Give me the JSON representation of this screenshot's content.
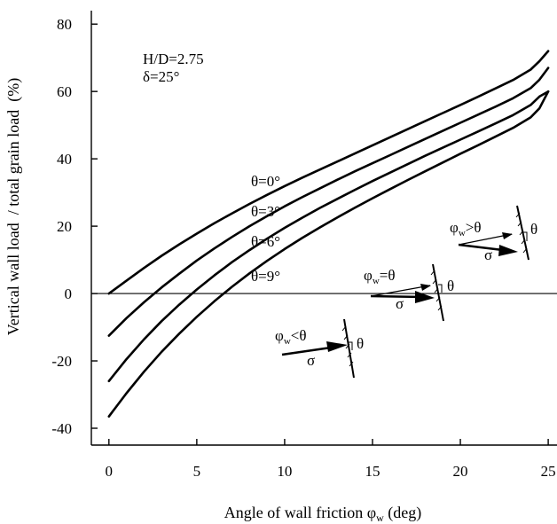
{
  "chart_data": {
    "type": "line",
    "title": "",
    "xlabel": "Angle of wall friction φw (deg)",
    "xlabel_main": "Angle of wall friction φ",
    "xlabel_sub": "w",
    "xlabel_unit": " (deg)",
    "ylabel": "Vertical wall load  / total grain load  (%)",
    "xlim": [
      -1,
      25.5
    ],
    "ylim": [
      -45,
      84
    ],
    "xticks": [
      0,
      5,
      10,
      15,
      20,
      25
    ],
    "yticks": [
      -40,
      -20,
      0,
      20,
      40,
      60,
      80
    ],
    "xtick_labels": [
      "0",
      "5",
      "10",
      "15",
      "20",
      "25"
    ],
    "ytick_labels": [
      "-40",
      "-20",
      "0",
      "20",
      "40",
      "60",
      "80"
    ],
    "grid": false,
    "annotations": {
      "params_line1": "H/D=2.75",
      "params_line2": "δ=25°",
      "inset_gt": {
        "phi": "φ",
        "sub": "w",
        "rel": ">θ",
        "sigma": "σ",
        "theta": "θ"
      },
      "inset_eq": {
        "phi": "φ",
        "sub": "w",
        "rel": "=θ",
        "sigma": "σ",
        "theta": "θ"
      },
      "inset_lt": {
        "phi": "φ",
        "sub": "w",
        "rel": "<θ",
        "sigma": "σ",
        "theta": "θ"
      }
    },
    "series": [
      {
        "name": "θ=0°",
        "x": [
          0,
          1,
          2,
          3,
          4,
          5,
          6,
          7,
          8,
          9,
          10,
          11,
          12,
          13,
          14,
          15,
          16,
          17,
          18,
          19,
          20,
          21,
          22,
          23,
          24,
          24.5,
          25
        ],
        "y": [
          0,
          3.8,
          7.6,
          11.2,
          14.6,
          17.8,
          20.9,
          23.8,
          26.6,
          29.3,
          31.9,
          34.4,
          36.8,
          39.2,
          41.6,
          44,
          46.4,
          48.8,
          51.2,
          53.6,
          56,
          58.4,
          60.9,
          63.4,
          66.5,
          69,
          72
        ]
      },
      {
        "name": "θ=3°",
        "x": [
          0,
          1,
          2,
          3,
          4,
          5,
          6,
          7,
          8,
          9,
          10,
          11,
          12,
          13,
          14,
          15,
          16,
          17,
          18,
          19,
          20,
          21,
          22,
          23,
          24,
          24.5,
          25
        ],
        "y": [
          -12.5,
          -7.3,
          -2.6,
          1.8,
          5.9,
          9.8,
          13.4,
          16.8,
          20,
          23,
          25.9,
          28.6,
          31.2,
          33.8,
          36.3,
          38.7,
          41.1,
          43.5,
          45.9,
          48.3,
          50.7,
          53.1,
          55.5,
          58,
          61,
          63.5,
          67
        ]
      },
      {
        "name": "θ=6°",
        "x": [
          0,
          1,
          2,
          3,
          4,
          5,
          6,
          7,
          8,
          9,
          10,
          11,
          12,
          13,
          14,
          15,
          16,
          17,
          18,
          19,
          20,
          21,
          22,
          23,
          24,
          24.5,
          25
        ],
        "y": [
          -26,
          -19.5,
          -13.6,
          -8.2,
          -3.3,
          1.2,
          5.4,
          9.3,
          12.9,
          16.3,
          19.5,
          22.5,
          25.4,
          28.1,
          30.8,
          33.4,
          35.9,
          38.4,
          40.9,
          43.3,
          45.7,
          48.1,
          50.5,
          53,
          56,
          58.5,
          60
        ]
      },
      {
        "name": "θ=9°",
        "x": [
          0,
          1,
          2,
          3,
          4,
          5,
          6,
          7,
          8,
          9,
          10,
          11,
          12,
          13,
          14,
          15,
          16,
          17,
          18,
          19,
          20,
          21,
          22,
          23,
          24,
          24.5,
          25
        ],
        "y": [
          -36.5,
          -29.6,
          -23.2,
          -17.3,
          -11.9,
          -6.9,
          -2.3,
          2,
          6,
          9.7,
          13.2,
          16.5,
          19.6,
          22.6,
          25.5,
          28.3,
          31,
          33.7,
          36.3,
          38.9,
          41.5,
          44,
          46.6,
          49.2,
          52.3,
          55,
          60
        ]
      }
    ]
  }
}
